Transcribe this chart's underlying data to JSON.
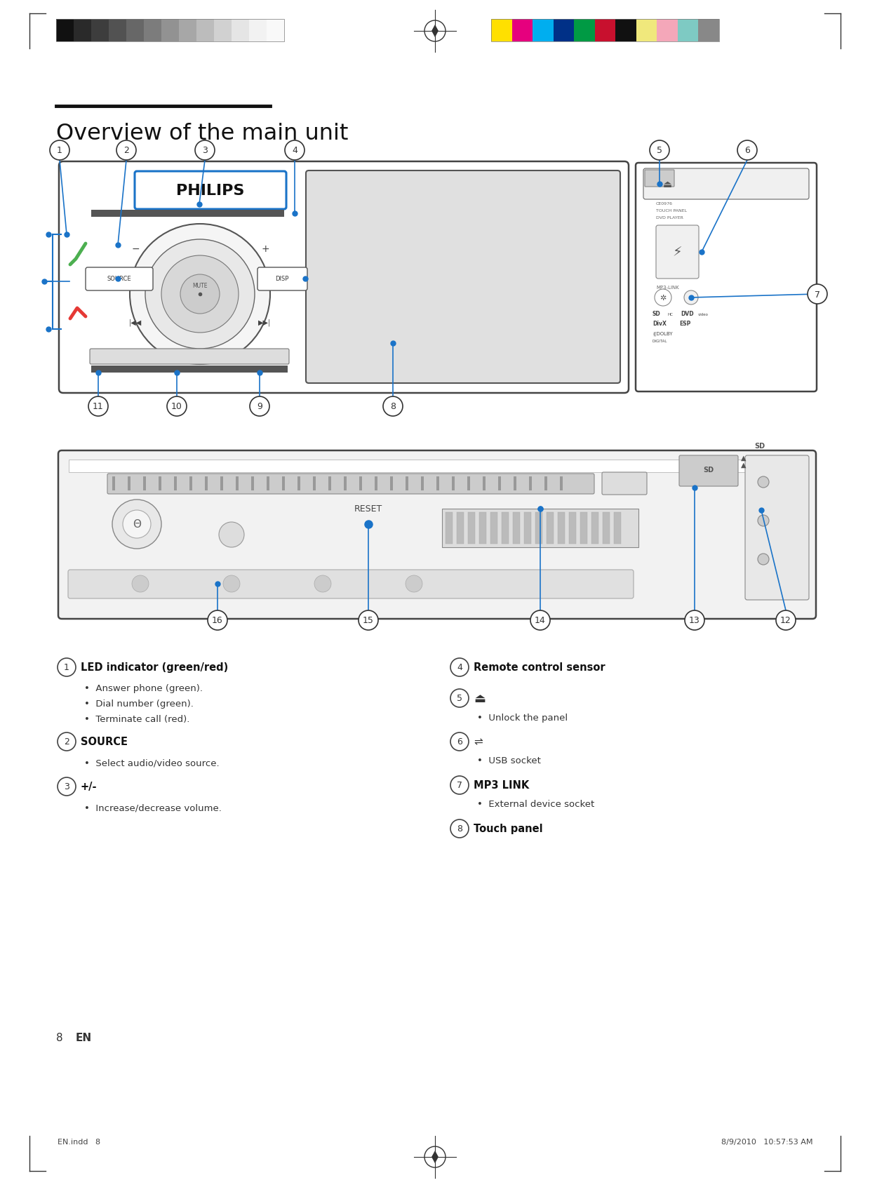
{
  "page_bg": "#ffffff",
  "title": "Overview of the main unit",
  "title_color": "#111111",
  "gray_bar_colors": [
    "#111111",
    "#2a2a2a",
    "#3d3d3d",
    "#525252",
    "#676767",
    "#7c7c7c",
    "#929292",
    "#a7a7a7",
    "#bcbcbc",
    "#d1d1d1",
    "#e5e5e5",
    "#f2f2f2",
    "#f9f9f9"
  ],
  "color_bar_colors": [
    "#ffe000",
    "#e6007e",
    "#00aeef",
    "#003087",
    "#009a44",
    "#c8102e",
    "#111111",
    "#f0e87c",
    "#f4a7b9",
    "#7ecac3",
    "#888888"
  ],
  "accent_color": "#1a73c8",
  "green_color": "#4caf50",
  "red_color": "#e53935",
  "footer_left": "EN.indd   8",
  "footer_right": "8/9/2010   10:57:53 AM",
  "desc_items_left": [
    {
      "num": 1,
      "title": "LED indicator (green/red)",
      "bold": true,
      "bullets": [
        "Answer phone (green).",
        "Dial number (green).",
        "Terminate call (red)."
      ]
    },
    {
      "num": 2,
      "title": "SOURCE",
      "bold": true,
      "bullets": [
        "Select audio/video source."
      ]
    },
    {
      "num": 3,
      "title": "+/-",
      "bold": true,
      "bullets": [
        "Increase/decrease volume."
      ]
    }
  ],
  "desc_items_right": [
    {
      "num": 4,
      "title": "Remote control sensor",
      "bold": true,
      "bullets": []
    },
    {
      "num": 5,
      "title": "⏏",
      "bold": false,
      "bullets": [
        "Unlock the panel"
      ]
    },
    {
      "num": 6,
      "title": "↳",
      "bold": false,
      "bullets": [
        "USB socket"
      ]
    },
    {
      "num": 7,
      "title": "MP3 LINK",
      "bold": true,
      "bullets": [
        "External device socket"
      ]
    },
    {
      "num": 8,
      "title": "Touch panel",
      "bold": true,
      "bullets": []
    }
  ]
}
